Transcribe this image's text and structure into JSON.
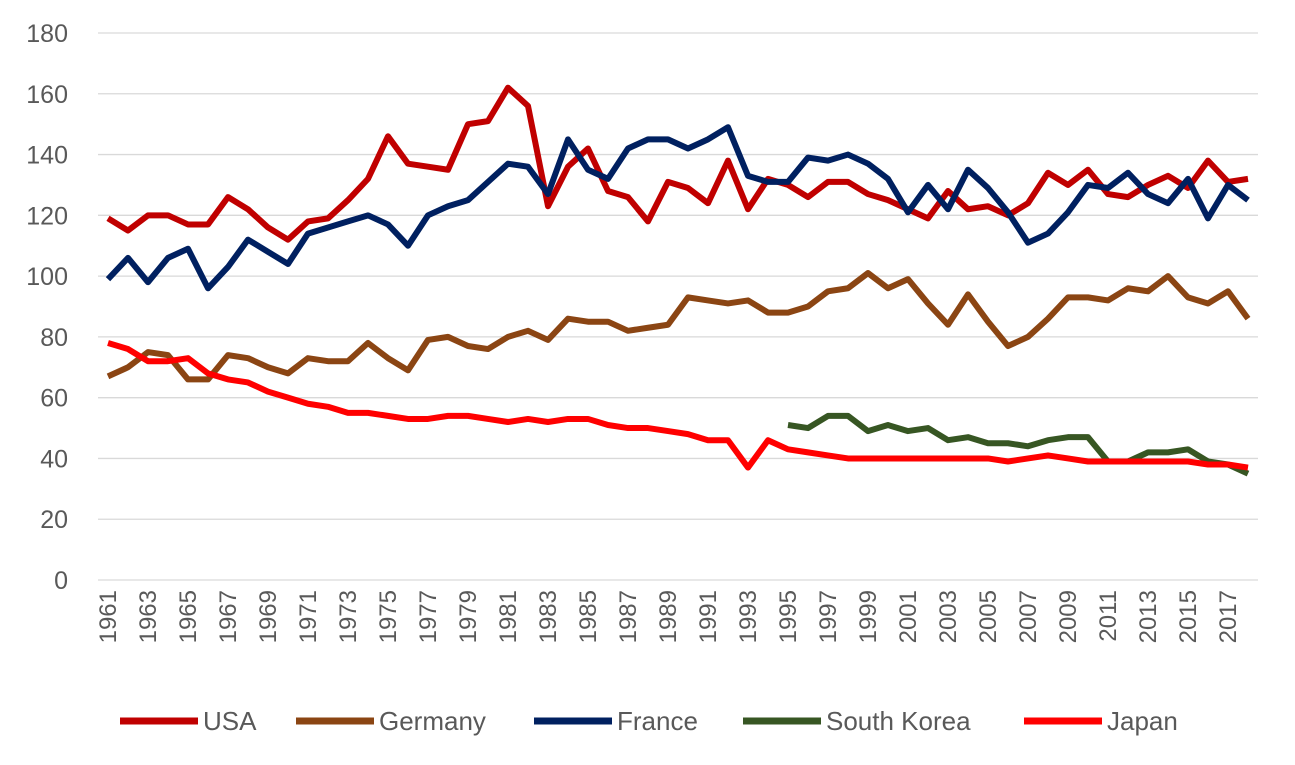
{
  "chart_data": {
    "type": "line",
    "title": "",
    "xlabel": "",
    "ylabel": "",
    "ylim": [
      0,
      180
    ],
    "yticks": [
      "0",
      "20",
      "40",
      "60",
      "80",
      "100",
      "120",
      "140",
      "160",
      "180"
    ],
    "grid": true,
    "legend_position": "bottom",
    "x": [
      1961,
      1962,
      1963,
      1964,
      1965,
      1966,
      1967,
      1968,
      1969,
      1970,
      1971,
      1972,
      1973,
      1974,
      1975,
      1976,
      1977,
      1978,
      1979,
      1980,
      1981,
      1982,
      1983,
      1984,
      1985,
      1986,
      1987,
      1988,
      1989,
      1990,
      1991,
      1992,
      1993,
      1994,
      1995,
      1996,
      1997,
      1998,
      1999,
      2000,
      2001,
      2002,
      2003,
      2004,
      2005,
      2006,
      2007,
      2008,
      2009,
      2010,
      2011,
      2012,
      2013,
      2014,
      2015,
      2016,
      2017,
      2018
    ],
    "x_tick_labels": [
      "1961",
      "1963",
      "1965",
      "1967",
      "1969",
      "1971",
      "1973",
      "1975",
      "1977",
      "1979",
      "1981",
      "1983",
      "1985",
      "1987",
      "1989",
      "1991",
      "1993",
      "1995",
      "1997",
      "1999",
      "2001",
      "2003",
      "2005",
      "2007",
      "2009",
      "2011",
      "2013",
      "2015",
      "2017"
    ],
    "series": [
      {
        "name": "USA",
        "color": "#c00000",
        "values": [
          119,
          115,
          120,
          120,
          117,
          117,
          126,
          122,
          116,
          112,
          118,
          119,
          125,
          132,
          146,
          137,
          136,
          135,
          150,
          151,
          162,
          156,
          123,
          136,
          142,
          128,
          126,
          118,
          131,
          129,
          124,
          138,
          122,
          132,
          130,
          126,
          131,
          131,
          127,
          125,
          122,
          119,
          128,
          122,
          123,
          120,
          124,
          134,
          130,
          135,
          127,
          126,
          130,
          133,
          129,
          138,
          131,
          132
        ]
      },
      {
        "name": "Germany",
        "color": "#8b4513",
        "values": [
          67,
          70,
          75,
          74,
          66,
          66,
          74,
          73,
          70,
          68,
          73,
          72,
          72,
          78,
          73,
          69,
          79,
          80,
          77,
          76,
          80,
          82,
          79,
          86,
          85,
          85,
          82,
          83,
          84,
          93,
          92,
          91,
          92,
          88,
          88,
          90,
          95,
          96,
          101,
          96,
          99,
          91,
          84,
          94,
          85,
          77,
          80,
          86,
          93,
          93,
          92,
          96,
          95,
          100,
          93,
          91,
          95,
          86
        ]
      },
      {
        "name": "France",
        "color": "#002060",
        "values": [
          99,
          106,
          98,
          106,
          109,
          96,
          103,
          112,
          108,
          104,
          114,
          116,
          118,
          120,
          117,
          110,
          120,
          123,
          125,
          131,
          137,
          136,
          127,
          145,
          135,
          132,
          142,
          145,
          145,
          142,
          145,
          149,
          133,
          131,
          131,
          139,
          138,
          140,
          137,
          132,
          121,
          130,
          122,
          135,
          129,
          121,
          111,
          114,
          121,
          130,
          129,
          134,
          127,
          124,
          132,
          119,
          130,
          125
        ]
      },
      {
        "name": "South Korea",
        "color": "#375623",
        "values": [
          null,
          null,
          null,
          null,
          null,
          null,
          null,
          null,
          null,
          null,
          null,
          null,
          null,
          null,
          null,
          null,
          null,
          null,
          null,
          null,
          null,
          null,
          null,
          null,
          null,
          null,
          null,
          null,
          null,
          null,
          null,
          null,
          null,
          null,
          51,
          50,
          54,
          54,
          49,
          51,
          49,
          50,
          46,
          47,
          45,
          45,
          44,
          46,
          47,
          47,
          39,
          39,
          42,
          42,
          43,
          39,
          38,
          35
        ]
      },
      {
        "name": "Japan",
        "color": "#ff0000",
        "values": [
          78,
          76,
          72,
          72,
          73,
          68,
          66,
          65,
          62,
          60,
          58,
          57,
          55,
          55,
          54,
          53,
          53,
          54,
          54,
          53,
          52,
          53,
          52,
          53,
          53,
          51,
          50,
          50,
          49,
          48,
          46,
          46,
          37,
          46,
          43,
          42,
          41,
          40,
          40,
          40,
          40,
          40,
          40,
          40,
          40,
          39,
          40,
          41,
          40,
          39,
          39,
          39,
          39,
          39,
          39,
          38,
          38,
          37
        ]
      }
    ]
  }
}
